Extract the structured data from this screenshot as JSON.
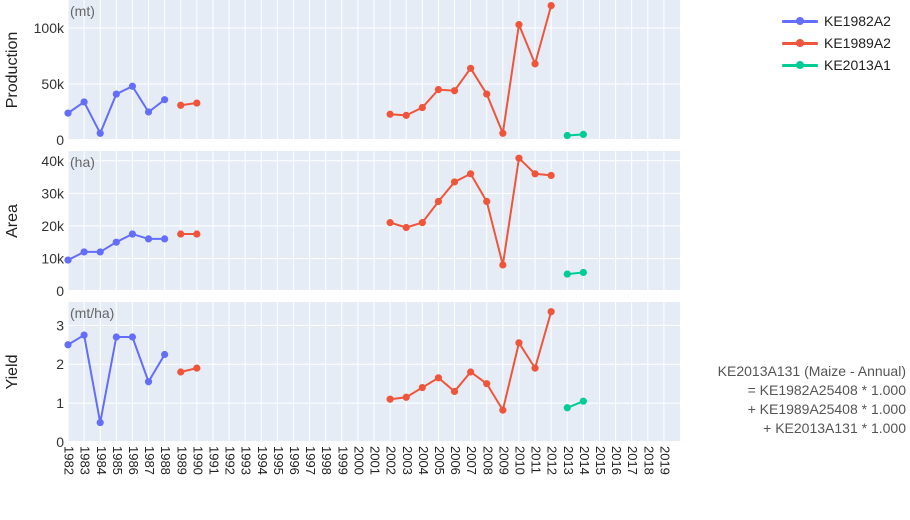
{
  "chart_data": {
    "type": "line",
    "x_categories": [
      "1982",
      "1983",
      "1984",
      "1985",
      "1986",
      "1987",
      "1988",
      "1989",
      "1990",
      "1991",
      "1992",
      "1993",
      "1994",
      "1995",
      "1996",
      "1997",
      "1998",
      "1999",
      "2000",
      "2001",
      "2002",
      "2003",
      "2004",
      "2005",
      "2006",
      "2007",
      "2008",
      "2009",
      "2010",
      "2011",
      "2012",
      "2013",
      "2014",
      "2015",
      "2016",
      "2017",
      "2018",
      "2019"
    ],
    "legend_position": "top-right",
    "grid": true,
    "series_styles": [
      {
        "name": "KE1982A2",
        "color": "#636efa"
      },
      {
        "name": "KE1989A2",
        "color": "#ef553b"
      },
      {
        "name": "KE2013A1",
        "color": "#00cc96"
      }
    ],
    "panels": [
      {
        "ylabel": "Production",
        "unit": "(mt)",
        "ylim": [
          0,
          125000
        ],
        "yticks": [
          0,
          50000,
          100000
        ],
        "ytick_labels": [
          "0",
          "50k",
          "100k"
        ],
        "series": [
          {
            "name": "KE1982A2",
            "segments": [
              [
                [
                  "1982",
                  24000
                ],
                [
                  "1983",
                  34000
                ],
                [
                  "1984",
                  6000
                ],
                [
                  "1985",
                  41000
                ],
                [
                  "1986",
                  48000
                ],
                [
                  "1987",
                  25000
                ],
                [
                  "1988",
                  36000
                ]
              ]
            ]
          },
          {
            "name": "KE1989A2",
            "segments": [
              [
                [
                  "1989",
                  31000
                ],
                [
                  "1990",
                  33000
                ]
              ],
              [
                [
                  "2002",
                  23000
                ],
                [
                  "2003",
                  22000
                ],
                [
                  "2004",
                  29000
                ],
                [
                  "2005",
                  45000
                ],
                [
                  "2006",
                  44000
                ],
                [
                  "2007",
                  64000
                ],
                [
                  "2008",
                  41000
                ],
                [
                  "2009",
                  6000
                ],
                [
                  "2010",
                  103000
                ],
                [
                  "2011",
                  68000
                ],
                [
                  "2012",
                  120000
                ]
              ]
            ]
          },
          {
            "name": "KE2013A1",
            "segments": [
              [
                [
                  "2013",
                  4000
                ],
                [
                  "2014",
                  5000
                ]
              ]
            ]
          }
        ]
      },
      {
        "ylabel": "Area",
        "unit": "(ha)",
        "ylim": [
          0,
          43000
        ],
        "yticks": [
          0,
          10000,
          20000,
          30000,
          40000
        ],
        "ytick_labels": [
          "0",
          "10k",
          "20k",
          "30k",
          "40k"
        ],
        "series": [
          {
            "name": "KE1982A2",
            "segments": [
              [
                [
                  "1982",
                  9500
                ],
                [
                  "1983",
                  12000
                ],
                [
                  "1984",
                  12000
                ],
                [
                  "1985",
                  15000
                ],
                [
                  "1986",
                  17500
                ],
                [
                  "1987",
                  16000
                ],
                [
                  "1988",
                  16000
                ]
              ]
            ]
          },
          {
            "name": "KE1989A2",
            "segments": [
              [
                [
                  "1989",
                  17500
                ],
                [
                  "1990",
                  17500
                ]
              ],
              [
                [
                  "2002",
                  21000
                ],
                [
                  "2003",
                  19500
                ],
                [
                  "2004",
                  21000
                ],
                [
                  "2005",
                  27500
                ],
                [
                  "2006",
                  33500
                ],
                [
                  "2007",
                  36000
                ],
                [
                  "2008",
                  27500
                ],
                [
                  "2009",
                  8000
                ],
                [
                  "2010",
                  40800
                ],
                [
                  "2011",
                  36000
                ],
                [
                  "2012",
                  35500
                ]
              ]
            ]
          },
          {
            "name": "KE2013A1",
            "segments": [
              [
                [
                  "2013",
                  5200
                ],
                [
                  "2014",
                  5700
                ]
              ]
            ]
          }
        ]
      },
      {
        "ylabel": "Yield",
        "unit": "(mt/ha)",
        "ylim": [
          0,
          3.6
        ],
        "yticks": [
          0,
          1,
          2,
          3
        ],
        "ytick_labels": [
          "0",
          "1",
          "2",
          "3"
        ],
        "series": [
          {
            "name": "KE1982A2",
            "segments": [
              [
                [
                  "1982",
                  2.5
                ],
                [
                  "1983",
                  2.75
                ],
                [
                  "1984",
                  0.5
                ],
                [
                  "1985",
                  2.7
                ],
                [
                  "1986",
                  2.7
                ],
                [
                  "1987",
                  1.55
                ],
                [
                  "1988",
                  2.25
                ]
              ]
            ]
          },
          {
            "name": "KE1989A2",
            "segments": [
              [
                [
                  "1989",
                  1.8
                ],
                [
                  "1990",
                  1.9
                ]
              ],
              [
                [
                  "2002",
                  1.1
                ],
                [
                  "2003",
                  1.15
                ],
                [
                  "2004",
                  1.4
                ],
                [
                  "2005",
                  1.65
                ],
                [
                  "2006",
                  1.3
                ],
                [
                  "2007",
                  1.8
                ],
                [
                  "2008",
                  1.5
                ],
                [
                  "2009",
                  0.82
                ],
                [
                  "2010",
                  2.55
                ],
                [
                  "2011",
                  1.9
                ],
                [
                  "2012",
                  3.35
                ]
              ]
            ]
          },
          {
            "name": "KE2013A1",
            "segments": [
              [
                [
                  "2013",
                  0.88
                ],
                [
                  "2014",
                  1.05
                ]
              ]
            ]
          }
        ]
      }
    ],
    "legend": [
      "KE1982A2",
      "KE1989A2",
      "KE2013A1"
    ],
    "annotation_lines": [
      "KE2013A131 (Maize - Annual)",
      "= KE1982A25408 * 1.000",
      "+ KE1989A25408 * 1.000",
      "+ KE2013A131 * 1.000"
    ]
  }
}
